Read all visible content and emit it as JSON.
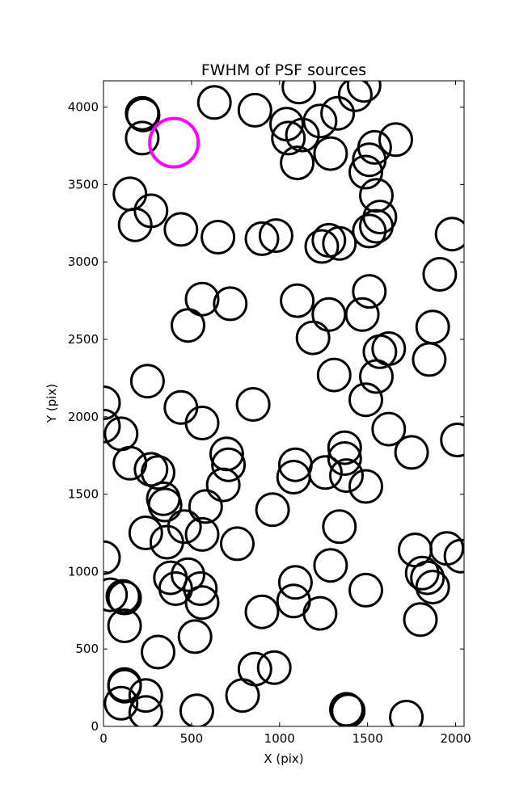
{
  "chart_data": {
    "type": "scatter",
    "title": "FWHM of PSF sources",
    "xlabel": "X (pix)",
    "ylabel": "Y (pix)",
    "xlim": [
      0,
      2048
    ],
    "ylim": [
      0,
      4170
    ],
    "xticks": [
      0,
      500,
      1000,
      1500,
      2000
    ],
    "yticks": [
      0,
      500,
      1000,
      1500,
      2000,
      2500,
      3000,
      3500,
      4000
    ],
    "grid": false,
    "marker": "open circle",
    "series": [
      {
        "color": "#000000",
        "points": [
          [
            220,
            3960
          ],
          [
            225,
            3950
          ],
          [
            630,
            4030
          ],
          [
            860,
            3980
          ],
          [
            1040,
            3890
          ],
          [
            1110,
            4130
          ],
          [
            1430,
            4080
          ],
          [
            1480,
            4140
          ],
          [
            1230,
            3910
          ],
          [
            1330,
            3960
          ],
          [
            220,
            3800
          ],
          [
            1050,
            3800
          ],
          [
            1130,
            3820
          ],
          [
            1100,
            3640
          ],
          [
            1290,
            3700
          ],
          [
            1540,
            3740
          ],
          [
            1660,
            3790
          ],
          [
            1490,
            3580
          ],
          [
            1510,
            3660
          ],
          [
            1550,
            3430
          ],
          [
            150,
            3440
          ],
          [
            180,
            3240
          ],
          [
            270,
            3330
          ],
          [
            440,
            3210
          ],
          [
            650,
            3160
          ],
          [
            900,
            3150
          ],
          [
            980,
            3170
          ],
          [
            1240,
            3100
          ],
          [
            1280,
            3140
          ],
          [
            1340,
            3120
          ],
          [
            1510,
            3200
          ],
          [
            1550,
            3230
          ],
          [
            1570,
            3290
          ],
          [
            1980,
            3180
          ],
          [
            1910,
            2920
          ],
          [
            560,
            2760
          ],
          [
            720,
            2730
          ],
          [
            480,
            2590
          ],
          [
            1100,
            2750
          ],
          [
            1280,
            2660
          ],
          [
            1510,
            2810
          ],
          [
            1470,
            2660
          ],
          [
            1190,
            2510
          ],
          [
            1870,
            2580
          ],
          [
            1850,
            2370
          ],
          [
            1570,
            2420
          ],
          [
            1620,
            2440
          ],
          [
            250,
            2230
          ],
          [
            1310,
            2270
          ],
          [
            1550,
            2260
          ],
          [
            1490,
            2110
          ],
          [
            0,
            2090
          ],
          [
            0,
            1940
          ],
          [
            100,
            1890
          ],
          [
            440,
            2060
          ],
          [
            560,
            1960
          ],
          [
            850,
            2080
          ],
          [
            1620,
            1920
          ],
          [
            2010,
            1850
          ],
          [
            1750,
            1770
          ],
          [
            150,
            1700
          ],
          [
            270,
            1660
          ],
          [
            310,
            1640
          ],
          [
            700,
            1760
          ],
          [
            710,
            1690
          ],
          [
            680,
            1560
          ],
          [
            1090,
            1690
          ],
          [
            1080,
            1610
          ],
          [
            1260,
            1640
          ],
          [
            1370,
            1800
          ],
          [
            1370,
            1730
          ],
          [
            1380,
            1620
          ],
          [
            1490,
            1550
          ],
          [
            340,
            1470
          ],
          [
            350,
            1430
          ],
          [
            580,
            1420
          ],
          [
            240,
            1250
          ],
          [
            360,
            1190
          ],
          [
            460,
            1290
          ],
          [
            560,
            1240
          ],
          [
            760,
            1180
          ],
          [
            960,
            1400
          ],
          [
            1340,
            1290
          ],
          [
            0,
            1090
          ],
          [
            1770,
            1140
          ],
          [
            1950,
            1150
          ],
          [
            2030,
            1100
          ],
          [
            1290,
            1040
          ],
          [
            40,
            850
          ],
          [
            110,
            840
          ],
          [
            120,
            830
          ],
          [
            380,
            960
          ],
          [
            410,
            890
          ],
          [
            480,
            980
          ],
          [
            550,
            890
          ],
          [
            560,
            800
          ],
          [
            1090,
            930
          ],
          [
            1080,
            810
          ],
          [
            900,
            740
          ],
          [
            1230,
            730
          ],
          [
            1490,
            880
          ],
          [
            1810,
            990
          ],
          [
            1840,
            960
          ],
          [
            1870,
            900
          ],
          [
            1800,
            690
          ],
          [
            120,
            650
          ],
          [
            310,
            480
          ],
          [
            520,
            580
          ],
          [
            120,
            270
          ],
          [
            120,
            260
          ],
          [
            100,
            150
          ],
          [
            240,
            200
          ],
          [
            240,
            90
          ],
          [
            530,
            100
          ],
          [
            790,
            200
          ],
          [
            860,
            370
          ],
          [
            970,
            380
          ],
          [
            1380,
            110
          ],
          [
            1390,
            100
          ],
          [
            1720,
            60
          ]
        ]
      },
      {
        "color": "#ff00ff",
        "points": [
          [
            400,
            3770
          ]
        ]
      }
    ]
  }
}
